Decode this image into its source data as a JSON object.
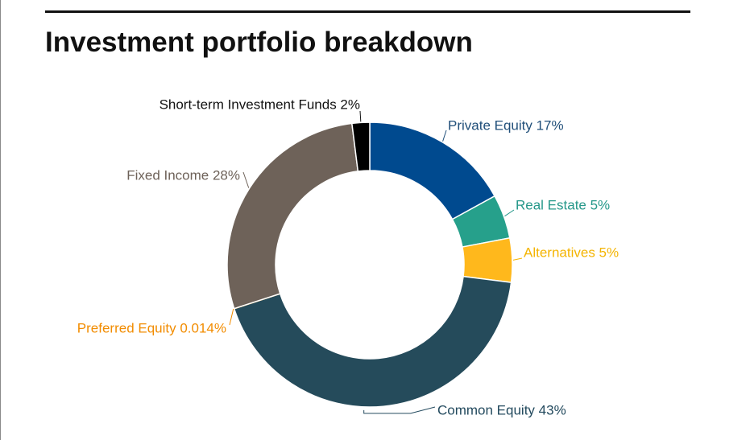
{
  "chart_data": {
    "type": "pie",
    "title": "Investment portfolio breakdown",
    "donut": true,
    "legend": "none",
    "slices": [
      {
        "label": "Private Equity 17%",
        "value": 17,
        "color": "#004a8f",
        "label_color": "#1f4e79"
      },
      {
        "label": "Real Estate 5%",
        "value": 5,
        "color": "#26a08b",
        "label_color": "#26988a"
      },
      {
        "label": "Alternatives 5%",
        "value": 5,
        "color": "#ffb81c",
        "label_color": "#f4b400"
      },
      {
        "label": "Common Equity 43%",
        "value": 43,
        "color": "#254b5b",
        "label_color": "#234a5e"
      },
      {
        "label": "Preferred Equity 0.014%",
        "value": 0.014,
        "color": "#f28c00",
        "label_color": "#f28c00"
      },
      {
        "label": "Fixed Income 28%",
        "value": 28,
        "color": "#6e6259",
        "label_color": "#6e6259"
      },
      {
        "label": "Short-term Investment Funds 2%",
        "value": 2,
        "color": "#000000",
        "label_color": "#111111"
      }
    ]
  }
}
